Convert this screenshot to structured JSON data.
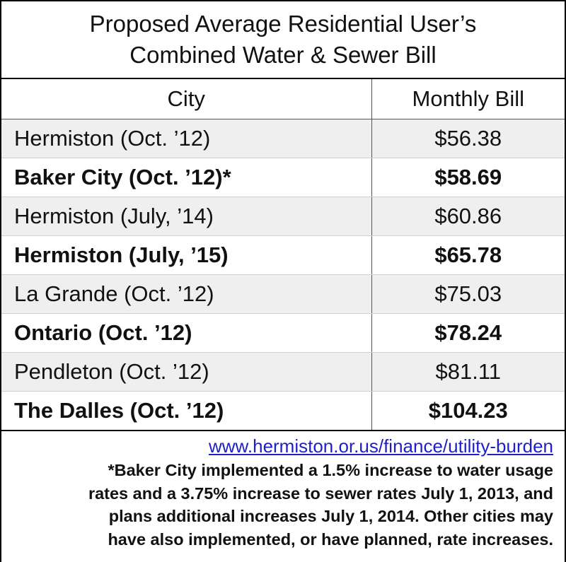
{
  "chart_data": {
    "type": "table",
    "title": "Proposed Average Residential User’s Combined Water & Sewer Bill",
    "title_lines": [
      "Proposed Average Residential User’s",
      "Combined Water & Sewer Bill"
    ],
    "columns": [
      "City",
      "Monthly Bill"
    ],
    "rows": [
      {
        "city": "Hermiston (Oct. ’12)",
        "bill": "$56.38",
        "value": 56.38
      },
      {
        "city": "Baker City (Oct. ’12)*",
        "bill": "$58.69",
        "value": 58.69
      },
      {
        "city": "Hermiston (July, ’14)",
        "bill": "$60.86",
        "value": 60.86
      },
      {
        "city": "Hermiston (July, ’15)",
        "bill": "$65.78",
        "value": 65.78
      },
      {
        "city": "La Grande (Oct. ’12)",
        "bill": "$75.03",
        "value": 75.03
      },
      {
        "city": "Ontario (Oct. ’12)",
        "bill": "$78.24",
        "value": 78.24
      },
      {
        "city": "Pendleton (Oct. ’12)",
        "bill": "$81.11",
        "value": 81.11
      },
      {
        "city": "The Dalles (Oct. ’12)",
        "bill": "$104.23",
        "value": 104.23
      }
    ],
    "source_url": "www.hermiston.or.us/finance/utility-burden",
    "footnote_lines": [
      "*Baker City implemented a 1.5% increase to water usage",
      "rates and a 3.75% increase to sewer rates July 1, 2013, and",
      "plans additional increases July 1, 2014.  Other cities may",
      "have also implemented, or have planned, rate increases."
    ]
  }
}
